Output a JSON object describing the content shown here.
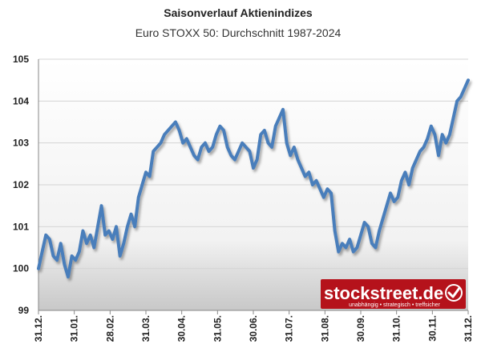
{
  "chart_data": {
    "type": "line",
    "title": "Saisonverlauf Aktienindizes",
    "subtitle": "Euro STOXX 50: Durchschnitt 1987-2024",
    "ylim": [
      99,
      105
    ],
    "yticks": [
      "99",
      "100",
      "101",
      "102",
      "103",
      "104",
      "105"
    ],
    "xticks": [
      "31.12.",
      "31.01.",
      "28.02.",
      "31.03.",
      "30.04.",
      "31.05.",
      "30.06.",
      "31.07.",
      "31.08.",
      "30.09.",
      "31.10.",
      "30.11.",
      "31.12."
    ],
    "grid": true,
    "line_color": "#4a7ebb",
    "series": [
      {
        "values": [
          100.0,
          100.4,
          100.8,
          100.7,
          100.3,
          100.2,
          100.6,
          100.1,
          99.8,
          100.3,
          100.2,
          100.4,
          100.9,
          100.6,
          100.8,
          100.5,
          101.0,
          101.5,
          100.8,
          100.9,
          100.7,
          101.0,
          100.3,
          100.6,
          101.0,
          101.3,
          101.0,
          101.7,
          102.0,
          102.3,
          102.2,
          102.8,
          102.9,
          103.0,
          103.2,
          103.3,
          103.4,
          103.5,
          103.3,
          103.0,
          103.1,
          102.9,
          102.7,
          102.6,
          102.9,
          103.0,
          102.8,
          102.9,
          103.2,
          103.4,
          103.3,
          102.9,
          102.7,
          102.6,
          102.8,
          103.0,
          102.9,
          102.8,
          102.4,
          102.6,
          103.2,
          103.3,
          103.0,
          102.9,
          103.4,
          103.6,
          103.8,
          103.0,
          102.7,
          102.9,
          102.6,
          102.4,
          102.2,
          102.3,
          102.0,
          102.1,
          101.9,
          101.7,
          101.9,
          101.8,
          100.9,
          100.4,
          100.6,
          100.5,
          100.7,
          100.4,
          100.5,
          100.8,
          101.1,
          101.0,
          100.6,
          100.5,
          100.9,
          101.2,
          101.5,
          101.8,
          101.6,
          101.7,
          102.1,
          102.3,
          102.0,
          102.4,
          102.6,
          102.8,
          102.9,
          103.1,
          103.4,
          103.2,
          102.7,
          103.2,
          103.0,
          103.2,
          103.6,
          104.0,
          104.1,
          104.3,
          104.5
        ]
      }
    ]
  },
  "brand": {
    "name": "stockstreet.de",
    "tagline": "unabhängig • strategisch • treffsicher"
  }
}
